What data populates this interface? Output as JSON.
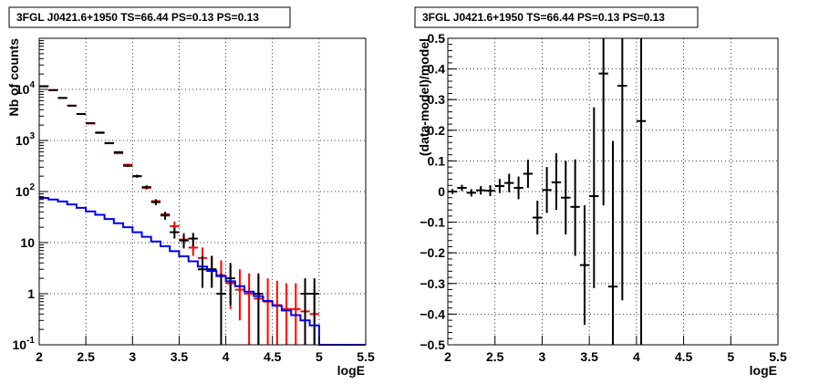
{
  "chart_data": [
    {
      "type": "line",
      "title": "3FGL J0421.6+1950 TS=66.44 PS=0.13 PS=0.13",
      "xlabel": "logE",
      "ylabel": "Nb of counts",
      "xlim": [
        2,
        5.5
      ],
      "ylim": [
        0.1,
        100000
      ],
      "yscale": "log",
      "grid": true,
      "x_ticks": [
        "2",
        "2.5",
        "3",
        "3.5",
        "4",
        "4.5",
        "5",
        "5.5"
      ],
      "y_ticks": [
        {
          "base": "10",
          "exp": "-1",
          "v": 0.1
        },
        {
          "base": "1",
          "exp": "",
          "v": 1
        },
        {
          "base": "10",
          "exp": "",
          "v": 10
        },
        {
          "base": "10",
          "exp": "2",
          "v": 100
        },
        {
          "base": "10",
          "exp": "3",
          "v": 1000
        },
        {
          "base": "10",
          "exp": "4",
          "v": 10000
        }
      ],
      "series": [
        {
          "color": "#ff0000",
          "style": "errorbar",
          "points": [
            {
              "x": 2.05,
              "y": 11500,
              "lo": 11300,
              "hi": 11700
            },
            {
              "x": 2.15,
              "y": 9600,
              "lo": 9400,
              "hi": 9800
            },
            {
              "x": 2.25,
              "y": 6800,
              "lo": 6650,
              "hi": 6950
            },
            {
              "x": 2.35,
              "y": 4800,
              "lo": 4680,
              "hi": 4920
            },
            {
              "x": 2.45,
              "y": 3300,
              "lo": 3220,
              "hi": 3380
            },
            {
              "x": 2.55,
              "y": 2150,
              "lo": 2100,
              "hi": 2200
            },
            {
              "x": 2.65,
              "y": 1400,
              "lo": 1360,
              "hi": 1440
            },
            {
              "x": 2.75,
              "y": 880,
              "lo": 850,
              "hi": 910
            },
            {
              "x": 2.85,
              "y": 560,
              "lo": 540,
              "hi": 580
            },
            {
              "x": 2.95,
              "y": 335,
              "lo": 320,
              "hi": 350
            },
            {
              "x": 3.05,
              "y": 200,
              "lo": 190,
              "hi": 210
            },
            {
              "x": 3.15,
              "y": 118,
              "lo": 110,
              "hi": 126
            },
            {
              "x": 3.25,
              "y": 65,
              "lo": 59,
              "hi": 71
            },
            {
              "x": 3.35,
              "y": 36,
              "lo": 32,
              "hi": 40
            },
            {
              "x": 3.45,
              "y": 21,
              "lo": 17,
              "hi": 26
            },
            {
              "x": 3.55,
              "y": 11.5,
              "lo": 8.5,
              "hi": 15.5
            },
            {
              "x": 3.65,
              "y": 8,
              "lo": 5.5,
              "hi": 11.5
            },
            {
              "x": 3.75,
              "y": 5,
              "lo": 3,
              "hi": 8
            },
            {
              "x": 3.85,
              "y": 3,
              "lo": 1.5,
              "hi": 5.5
            },
            {
              "x": 3.95,
              "y": 2.3,
              "lo": 1,
              "hi": 4.5
            },
            {
              "x": 4.05,
              "y": 1.6,
              "lo": 0.5,
              "hi": 3.5
            },
            {
              "x": 4.15,
              "y": 1.2,
              "lo": 0.3,
              "hi": 3
            },
            {
              "x": 4.25,
              "y": 1,
              "lo": 0.1,
              "hi": 2.5
            },
            {
              "x": 4.35,
              "y": 0.8,
              "lo": 0.1,
              "hi": 2.2
            },
            {
              "x": 4.45,
              "y": 0.7,
              "lo": 0.1,
              "hi": 2
            },
            {
              "x": 4.55,
              "y": 0.6,
              "lo": 0.1,
              "hi": 1.8
            },
            {
              "x": 4.65,
              "y": 0.5,
              "lo": 0.1,
              "hi": 1.6
            },
            {
              "x": 4.75,
              "y": 0.5,
              "lo": 0.1,
              "hi": 1.6
            },
            {
              "x": 4.85,
              "y": 0.45,
              "lo": 0.1,
              "hi": 1.5
            },
            {
              "x": 4.95,
              "y": 0.4,
              "lo": 0.1,
              "hi": 1.4
            }
          ]
        },
        {
          "color": "#000000",
          "style": "errorbar",
          "points": [
            {
              "x": 2.05,
              "y": 11500,
              "lo": 11300,
              "hi": 11700
            },
            {
              "x": 2.15,
              "y": 9700,
              "lo": 9500,
              "hi": 9900
            },
            {
              "x": 2.25,
              "y": 6800,
              "lo": 6650,
              "hi": 6950
            },
            {
              "x": 2.35,
              "y": 4800,
              "lo": 4680,
              "hi": 4920
            },
            {
              "x": 2.45,
              "y": 3300,
              "lo": 3220,
              "hi": 3380
            },
            {
              "x": 2.55,
              "y": 2180,
              "lo": 2130,
              "hi": 2230
            },
            {
              "x": 2.65,
              "y": 1430,
              "lo": 1390,
              "hi": 1470
            },
            {
              "x": 2.75,
              "y": 890,
              "lo": 860,
              "hi": 920
            },
            {
              "x": 2.85,
              "y": 590,
              "lo": 565,
              "hi": 615
            },
            {
              "x": 2.95,
              "y": 320,
              "lo": 302,
              "hi": 338
            },
            {
              "x": 3.05,
              "y": 200,
              "lo": 186,
              "hi": 214
            },
            {
              "x": 3.15,
              "y": 122,
              "lo": 111,
              "hi": 133
            },
            {
              "x": 3.25,
              "y": 62,
              "lo": 54,
              "hi": 70
            },
            {
              "x": 3.35,
              "y": 34,
              "lo": 28,
              "hi": 40
            },
            {
              "x": 3.45,
              "y": 16,
              "lo": 12,
              "hi": 20
            },
            {
              "x": 3.55,
              "y": 11,
              "lo": 7.7,
              "hi": 14.5
            },
            {
              "x": 3.65,
              "y": 12,
              "lo": 8.5,
              "hi": 15.5
            },
            {
              "x": 3.75,
              "y": 3,
              "lo": 1.3,
              "hi": 5.5
            },
            {
              "x": 3.85,
              "y": 3,
              "lo": 1.3,
              "hi": 5.5
            },
            {
              "x": 3.95,
              "y": 1,
              "lo": 0.1,
              "hi": 2.5
            },
            {
              "x": 4.05,
              "y": 2,
              "lo": 0.6,
              "hi": 4
            },
            {
              "x": 4.35,
              "y": 1,
              "lo": 0.1,
              "hi": 2.5
            },
            {
              "x": 4.85,
              "y": 1,
              "lo": 0.1,
              "hi": 2
            },
            {
              "x": 4.95,
              "y": 1,
              "lo": 0.1,
              "hi": 2
            }
          ]
        },
        {
          "color": "#0000ee",
          "style": "step",
          "edges": [
            2.0,
            2.1,
            2.2,
            2.3,
            2.4,
            2.5,
            2.6,
            2.7,
            2.8,
            2.9,
            3.0,
            3.1,
            3.2,
            3.3,
            3.4,
            3.5,
            3.6,
            3.7,
            3.8,
            3.9,
            4.0,
            4.1,
            4.2,
            4.3,
            4.4,
            4.5,
            4.6,
            4.7,
            4.8,
            4.9,
            5.0,
            5.1,
            5.2,
            5.3,
            5.4,
            5.5
          ],
          "values": [
            75,
            70,
            64,
            56,
            48,
            41,
            35,
            29,
            24,
            20,
            16,
            13,
            10.5,
            8.5,
            6.8,
            5.4,
            4.3,
            3.4,
            2.8,
            2.2,
            1.75,
            1.4,
            1.1,
            0.9,
            0.72,
            0.58,
            0.47,
            0.38,
            0.3,
            0.24,
            0.1,
            0.1,
            0.1,
            0.1,
            0.1
          ]
        }
      ]
    },
    {
      "type": "scatter",
      "title": "3FGL J0421.6+1950 TS=66.44 PS=0.13 PS=0.13",
      "xlabel": "logE",
      "ylabel": "(data-model)/model",
      "xlim": [
        2,
        5.5
      ],
      "ylim": [
        -0.5,
        0.5
      ],
      "grid": true,
      "x_ticks": [
        "2",
        "2.5",
        "3",
        "3.5",
        "4",
        "4.5",
        "5",
        "5.5"
      ],
      "y_ticks": [
        "−0.5",
        "−0.4",
        "−0.3",
        "−0.2",
        "−0.1",
        "0",
        "0.1",
        "0.2",
        "0.3",
        "0.4",
        "0.5"
      ],
      "y_tick_values": [
        -0.5,
        -0.4,
        -0.3,
        -0.2,
        -0.1,
        0,
        0.1,
        0.2,
        0.3,
        0.4,
        0.5
      ],
      "series": [
        {
          "color": "#000000",
          "style": "errorbar",
          "points": [
            {
              "x": 2.05,
              "y": 0.0,
              "lo": -0.008,
              "hi": 0.008
            },
            {
              "x": 2.15,
              "y": 0.012,
              "lo": 0.002,
              "hi": 0.022
            },
            {
              "x": 2.25,
              "y": -0.004,
              "lo": -0.016,
              "hi": 0.008
            },
            {
              "x": 2.35,
              "y": 0.004,
              "lo": -0.01,
              "hi": 0.018
            },
            {
              "x": 2.45,
              "y": 0.003,
              "lo": -0.015,
              "hi": 0.021
            },
            {
              "x": 2.55,
              "y": 0.018,
              "lo": -0.005,
              "hi": 0.041
            },
            {
              "x": 2.65,
              "y": 0.028,
              "lo": -0.002,
              "hi": 0.058
            },
            {
              "x": 2.75,
              "y": 0.012,
              "lo": -0.025,
              "hi": 0.049
            },
            {
              "x": 2.85,
              "y": 0.058,
              "lo": 0.012,
              "hi": 0.104
            },
            {
              "x": 2.95,
              "y": -0.085,
              "lo": -0.14,
              "hi": -0.03
            },
            {
              "x": 3.05,
              "y": 0.005,
              "lo": -0.07,
              "hi": 0.08
            },
            {
              "x": 3.15,
              "y": 0.03,
              "lo": -0.06,
              "hi": 0.125
            },
            {
              "x": 3.25,
              "y": -0.02,
              "lo": -0.14,
              "hi": 0.1
            },
            {
              "x": 3.35,
              "y": -0.05,
              "lo": -0.21,
              "hi": 0.105
            },
            {
              "x": 3.45,
              "y": -0.24,
              "lo": -0.435,
              "hi": -0.045
            },
            {
              "x": 3.55,
              "y": -0.015,
              "lo": -0.315,
              "hi": 0.275
            },
            {
              "x": 3.65,
              "y": 0.385,
              "lo": -0.045,
              "hi": 0.5
            },
            {
              "x": 3.75,
              "y": -0.31,
              "lo": -0.5,
              "hi": 0.165
            },
            {
              "x": 3.85,
              "y": 0.345,
              "lo": -0.355,
              "hi": 0.5
            },
            {
              "x": 4.05,
              "y": 0.23,
              "lo": -0.5,
              "hi": 0.5
            }
          ]
        }
      ]
    }
  ]
}
